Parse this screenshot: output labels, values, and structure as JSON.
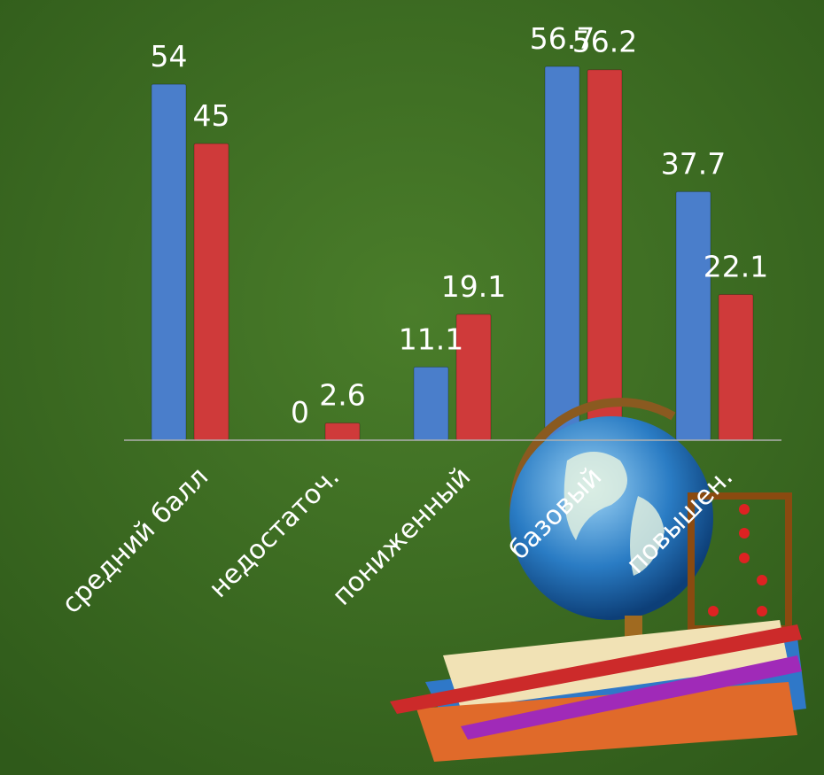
{
  "chart_data": {
    "type": "bar",
    "categories": [
      "средний балл",
      "недостаточ.",
      "пониженный",
      "базовый",
      "повышен."
    ],
    "series": [
      {
        "color": "#4a7ecb",
        "values": [
          54,
          0,
          11.1,
          56.7,
          37.7
        ]
      },
      {
        "color": "#cf3a3a",
        "values": [
          45,
          2.6,
          19.1,
          56.2,
          22.1
        ]
      }
    ]
  }
}
